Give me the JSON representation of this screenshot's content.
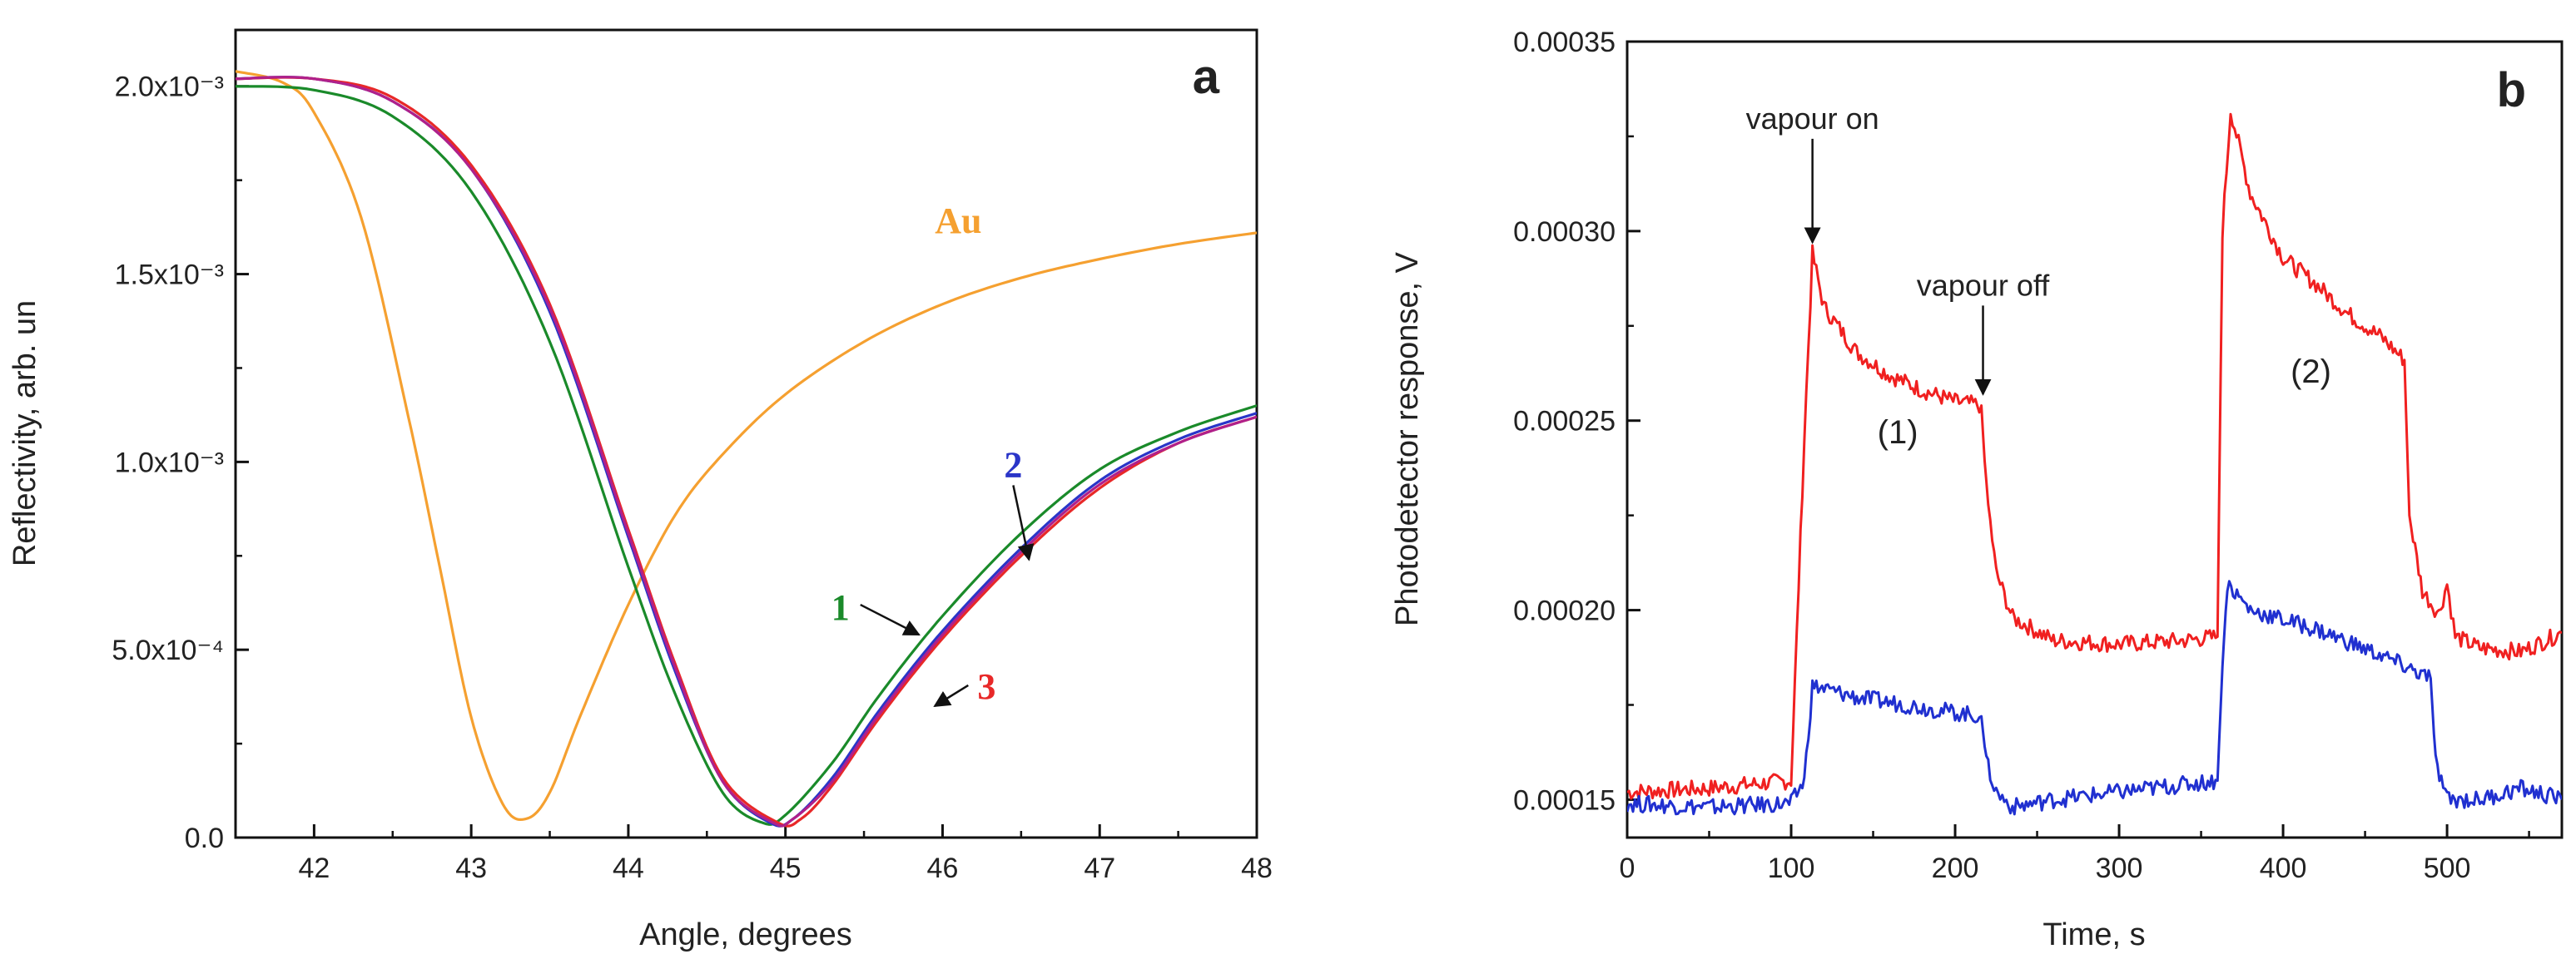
{
  "chart_data": [
    {
      "panel": "a",
      "type": "line",
      "title": "",
      "xlabel": "Angle, degrees",
      "ylabel": "Reflectivity, arb. un",
      "xlim": [
        41.5,
        48
      ],
      "ylim": [
        0,
        0.00215
      ],
      "xticks": [
        42,
        43,
        44,
        45,
        46,
        47,
        48
      ],
      "xtick_labels": [
        "42",
        "43",
        "44",
        "45",
        "46",
        "47",
        "48"
      ],
      "yticks": [
        0,
        0.0005,
        0.001,
        0.0015,
        0.002
      ],
      "ytick_labels": [
        "0.0",
        "5.0x10⁻⁴",
        "1.0x10⁻³",
        "1.5x10⁻³",
        "2.0x10⁻³"
      ],
      "panel_label": "a",
      "series": [
        {
          "name": "Au",
          "label": "Au",
          "color": "#f5a030",
          "x": [
            41.5,
            41.8,
            42.0,
            42.3,
            42.6,
            42.8,
            43.0,
            43.2,
            43.35,
            43.5,
            43.7,
            44.0,
            44.3,
            44.6,
            45.0,
            45.5,
            46.0,
            46.5,
            47.0,
            47.5,
            48.0
          ],
          "values": [
            0.00204,
            0.00201,
            0.00193,
            0.00165,
            0.00112,
            0.00072,
            0.00032,
            9e-05,
            5e-05,
            0.00012,
            0.00033,
            0.00062,
            0.00086,
            0.00102,
            0.00118,
            0.00132,
            0.00142,
            0.00149,
            0.00154,
            0.00158,
            0.00161
          ]
        },
        {
          "name": "1",
          "label": "1",
          "color": "#1a8a2a",
          "x": [
            41.5,
            42.0,
            42.5,
            43.0,
            43.5,
            44.0,
            44.3,
            44.6,
            44.85,
            45.0,
            45.3,
            45.6,
            46.0,
            46.5,
            47.0,
            47.5,
            48.0
          ],
          "values": [
            0.002,
            0.00199,
            0.00192,
            0.00172,
            0.00132,
            0.00072,
            0.00038,
            0.00012,
            4e-05,
            6e-05,
            0.0002,
            0.00038,
            0.00059,
            0.00081,
            0.00098,
            0.00108,
            0.00115
          ]
        },
        {
          "name": "2",
          "label": "2",
          "color": "#2a35c8",
          "x": [
            41.5,
            42.0,
            42.5,
            43.0,
            43.5,
            44.0,
            44.3,
            44.6,
            44.9,
            45.05,
            45.3,
            45.6,
            46.0,
            46.5,
            47.0,
            47.5,
            48.0
          ],
          "values": [
            0.00202,
            0.00202,
            0.00196,
            0.00178,
            0.0014,
            0.0008,
            0.00044,
            0.00015,
            4e-05,
            5e-05,
            0.00016,
            0.00034,
            0.00055,
            0.00077,
            0.00095,
            0.00106,
            0.00113
          ]
        },
        {
          "name": "3",
          "label": "3",
          "color": "#e82828",
          "x": [
            41.5,
            42.0,
            42.5,
            43.0,
            43.5,
            44.0,
            44.3,
            44.6,
            44.95,
            45.1,
            45.3,
            45.6,
            46.0,
            46.5,
            47.0,
            47.5,
            48.0
          ],
          "values": [
            0.00202,
            0.00202,
            0.00197,
            0.00179,
            0.00142,
            0.00082,
            0.00046,
            0.00016,
            4e-05,
            5e-05,
            0.00014,
            0.00032,
            0.00053,
            0.00075,
            0.00093,
            0.00105,
            0.00112
          ]
        },
        {
          "name": "magenta",
          "label": "",
          "color": "#b0208a",
          "x": [
            41.5,
            42.0,
            42.5,
            43.0,
            43.5,
            44.0,
            44.3,
            44.6,
            44.92,
            45.05,
            45.3,
            45.6,
            46.0,
            46.5,
            47.0,
            47.5,
            48.0
          ],
          "values": [
            0.00202,
            0.00202,
            0.00196,
            0.00178,
            0.00141,
            0.00081,
            0.00045,
            0.00015,
            4e-05,
            5e-05,
            0.00015,
            0.00033,
            0.00054,
            0.00076,
            0.00094,
            0.00105,
            0.00112
          ]
        }
      ],
      "annotations": [
        {
          "text": "Au",
          "color": "#f5a030",
          "at": [
            46.1,
            0.00161
          ]
        },
        {
          "text": "2",
          "color": "#2a35c8",
          "at": [
            46.45,
            0.00096
          ],
          "arrow_to": [
            46.55,
            0.00074
          ]
        },
        {
          "text": "1",
          "color": "#1a8a2a",
          "at": [
            45.35,
            0.00058
          ],
          "arrow_to": [
            45.85,
            0.00054
          ]
        },
        {
          "text": "3",
          "color": "#e82828",
          "at": [
            46.28,
            0.00037
          ],
          "arrow_to": [
            45.95,
            0.00035
          ]
        }
      ]
    },
    {
      "panel": "b",
      "type": "line",
      "title": "",
      "xlabel": "Time, s",
      "ylabel": "Photodetector response, V",
      "xlim": [
        0,
        570
      ],
      "ylim": [
        0.00014,
        0.00035
      ],
      "xticks": [
        0,
        100,
        200,
        300,
        400,
        500
      ],
      "xtick_labels": [
        "0",
        "100",
        "200",
        "300",
        "400",
        "500"
      ],
      "yticks": [
        0.00015,
        0.0002,
        0.00025,
        0.0003,
        0.00035
      ],
      "ytick_labels": [
        "0.00015",
        "0.00020",
        "0.00025",
        "0.00030",
        "0.00035"
      ],
      "panel_label": "b",
      "series": [
        {
          "name": "red",
          "color": "#f02020",
          "x": [
            0,
            50,
            100,
            108,
            113,
            120,
            140,
            160,
            180,
            200,
            216,
            219,
            225,
            235,
            260,
            300,
            340,
            360,
            363,
            368,
            380,
            400,
            420,
            440,
            460,
            474,
            477,
            485,
            495,
            500,
            505,
            520,
            545,
            570
          ],
          "values": [
            0.000152,
            0.000153,
            0.000155,
            0.000245,
            0.000294,
            0.00028,
            0.000268,
            0.000262,
            0.000258,
            0.000255,
            0.000254,
            0.000232,
            0.00021,
            0.000198,
            0.000192,
            0.000191,
            0.000192,
            0.000193,
            0.0003,
            0.000332,
            0.00031,
            0.000293,
            0.000286,
            0.000278,
            0.000272,
            0.000266,
            0.000225,
            0.000205,
            0.000199,
            0.000207,
            0.000193,
            0.00019,
            0.000189,
            0.000194
          ]
        },
        {
          "name": "blue",
          "color": "#2030d0",
          "x": [
            0,
            50,
            100,
            108,
            113,
            140,
            170,
            200,
            216,
            219,
            225,
            235,
            260,
            300,
            340,
            360,
            363,
            366,
            380,
            420,
            460,
            490,
            493,
            500,
            520,
            545,
            570
          ],
          "values": [
            0.000149,
            0.000148,
            0.000149,
            0.000155,
            0.00018,
            0.000177,
            0.000175,
            0.000173,
            0.000172,
            0.00016,
            0.000152,
            0.000148,
            0.00015,
            0.000152,
            0.000154,
            0.000155,
            0.000185,
            0.000207,
            0.0002,
            0.000195,
            0.000188,
            0.000182,
            0.00016,
            0.00015,
            0.00015,
            0.000153,
            0.00015
          ]
        }
      ],
      "annotations": [
        {
          "text": "vapour on",
          "at": [
            113,
            0.000327
          ],
          "arrow_to": [
            113,
            0.000297
          ]
        },
        {
          "text": "vapour off",
          "at": [
            217,
            0.000283
          ],
          "arrow_to": [
            217,
            0.000257
          ]
        },
        {
          "text": "(1)",
          "at": [
            165,
            0.000244
          ]
        },
        {
          "text": "(2)",
          "at": [
            417,
            0.00026
          ]
        }
      ]
    }
  ]
}
